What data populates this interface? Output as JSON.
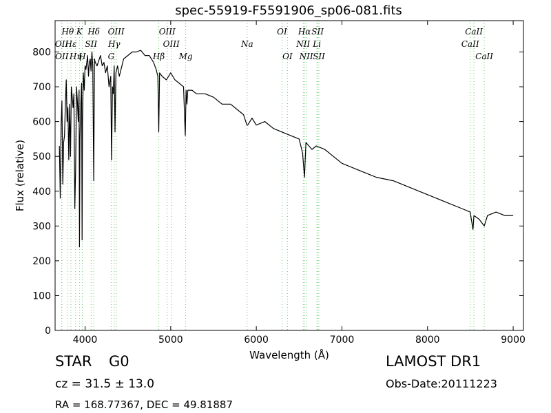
{
  "chart_data": {
    "type": "line",
    "title": "spec-55919-F5591906_sp06-081.fits",
    "xlabel": "Wavelength (Å)",
    "ylabel": "Flux (relative)",
    "xlim": [
      3650,
      9120
    ],
    "ylim": [
      0,
      890
    ],
    "xticks": [
      4000,
      5000,
      6000,
      7000,
      8000,
      9000
    ],
    "yticks": [
      0,
      100,
      200,
      300,
      400,
      500,
      600,
      700,
      800
    ],
    "grid": false,
    "series": [
      {
        "color": "#000000",
        "x": [
          3700,
          3710,
          3720,
          3730,
          3740,
          3750,
          3760,
          3770,
          3780,
          3790,
          3800,
          3810,
          3820,
          3830,
          3840,
          3850,
          3860,
          3870,
          3880,
          3890,
          3900,
          3910,
          3920,
          3930,
          3935,
          3940,
          3950,
          3960,
          3965,
          3970,
          3980,
          3990,
          4000,
          4010,
          4020,
          4030,
          4040,
          4050,
          4060,
          4070,
          4080,
          4090,
          4101,
          4110,
          4120,
          4140,
          4160,
          4180,
          4200,
          4220,
          4240,
          4260,
          4280,
          4300,
          4310,
          4320,
          4330,
          4340,
          4350,
          4360,
          4380,
          4400,
          4420,
          4450,
          4500,
          4550,
          4600,
          4650,
          4700,
          4750,
          4800,
          4830,
          4850,
          4861,
          4870,
          4900,
          4950,
          5000,
          5050,
          5100,
          5150,
          5170,
          5180,
          5190,
          5200,
          5250,
          5300,
          5400,
          5500,
          5600,
          5700,
          5800,
          5850,
          5890,
          5900,
          5950,
          6000,
          6100,
          6200,
          6300,
          6400,
          6500,
          6540,
          6563,
          6580,
          6650,
          6700,
          6800,
          6900,
          7000,
          7200,
          7400,
          7600,
          7800,
          8000,
          8200,
          8400,
          8498,
          8530,
          8542,
          8600,
          8662,
          8700,
          8800,
          8900,
          9000
        ],
        "y": [
          530,
          380,
          590,
          660,
          420,
          540,
          560,
          650,
          720,
          600,
          640,
          490,
          650,
          500,
          700,
          670,
          640,
          680,
          350,
          460,
          700,
          660,
          600,
          690,
          240,
          550,
          650,
          710,
          260,
          600,
          740,
          690,
          760,
          750,
          770,
          790,
          730,
          770,
          780,
          745,
          800,
          760,
          430,
          780,
          770,
          760,
          775,
          790,
          760,
          770,
          740,
          760,
          700,
          730,
          490,
          700,
          680,
          760,
          570,
          740,
          760,
          730,
          750,
          780,
          790,
          800,
          800,
          805,
          790,
          790,
          770,
          750,
          730,
          570,
          740,
          730,
          720,
          740,
          720,
          710,
          700,
          560,
          690,
          650,
          690,
          690,
          680,
          680,
          670,
          650,
          650,
          630,
          620,
          590,
          590,
          610,
          590,
          600,
          580,
          570,
          560,
          550,
          510,
          440,
          540,
          520,
          530,
          520,
          500,
          480,
          460,
          440,
          430,
          410,
          390,
          370,
          350,
          340,
          290,
          330,
          320,
          300,
          330,
          340,
          330,
          330
        ]
      }
    ],
    "spectral_lines": [
      {
        "label": "Hθ",
        "x": 3798,
        "row": 0
      },
      {
        "label": "K",
        "x": 3934,
        "row": 0
      },
      {
        "label": "Hδ",
        "x": 4102,
        "row": 0
      },
      {
        "label": "OIII",
        "x": 4363,
        "row": 0
      },
      {
        "label": "OIII",
        "x": 4959,
        "row": 0
      },
      {
        "label": "OI",
        "x": 6300,
        "row": 0
      },
      {
        "label": "Hα",
        "x": 6563,
        "row": 0
      },
      {
        "label": "SII",
        "x": 6716,
        "row": 0
      },
      {
        "label": "CaII",
        "x": 8542,
        "row": 0
      },
      {
        "label": "OII",
        "x": 3727,
        "row": 1
      },
      {
        "label": "Hε",
        "x": 3835,
        "row": 1
      },
      {
        "label": "SII",
        "x": 4070,
        "row": 1
      },
      {
        "label": "Hγ",
        "x": 4340,
        "row": 1
      },
      {
        "label": "OIII",
        "x": 5007,
        "row": 1
      },
      {
        "label": "Na",
        "x": 5893,
        "row": 1
      },
      {
        "label": "NII",
        "x": 6548,
        "row": 1
      },
      {
        "label": "Li",
        "x": 6708,
        "row": 1
      },
      {
        "label": "CaII",
        "x": 8498,
        "row": 1
      },
      {
        "label": "OII",
        "x": 3729,
        "row": 2
      },
      {
        "label": "Hη",
        "x": 3889,
        "row": 2
      },
      {
        "label": "H",
        "x": 3968,
        "row": 2
      },
      {
        "label": "G",
        "x": 4305,
        "row": 2
      },
      {
        "label": "Hβ",
        "x": 4861,
        "row": 2
      },
      {
        "label": "Mg",
        "x": 5175,
        "row": 2
      },
      {
        "label": "OI",
        "x": 6364,
        "row": 2
      },
      {
        "label": "NII",
        "x": 6583,
        "row": 2
      },
      {
        "label": "SII",
        "x": 6731,
        "row": 2
      },
      {
        "label": "CaII",
        "x": 8662,
        "row": 2
      }
    ],
    "line_color": "#66cc66"
  },
  "info": {
    "class": "STAR",
    "subclass": "G0",
    "survey": "LAMOST DR1",
    "cz": "cz = 31.5 ± 13.0",
    "obs_date": "Obs-Date:20111223",
    "radec": "RA = 168.77367, DEC = 49.81887"
  }
}
